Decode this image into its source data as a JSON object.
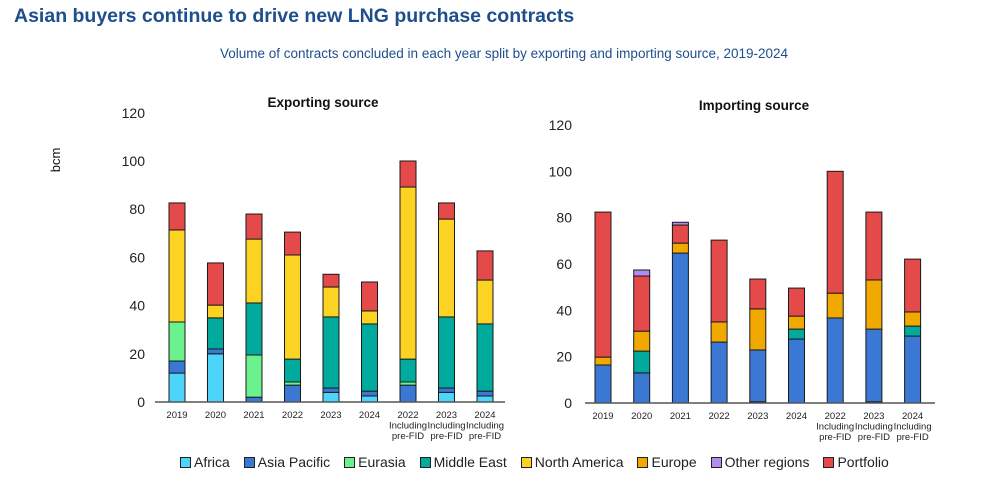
{
  "title": "Asian buyers continue to drive new LNG purchase contracts",
  "subtitle": "Volume of contracts concluded in each year split by exporting and importing source, 2019-2024",
  "colors": {
    "Africa": "#4dd4fb",
    "Asia Pacific": "#3a78d4",
    "Eurasia": "#6cf18f",
    "Middle East": "#00ab9e",
    "North America": "#fcd322",
    "Europe": "#f1a900",
    "Other regions": "#b38cef",
    "Portfolio": "#e44a4a"
  },
  "legend": [
    "Africa",
    "Asia Pacific",
    "Eurasia",
    "Middle East",
    "North America",
    "Europe",
    "Other regions",
    "Portfolio"
  ],
  "chart_data": [
    {
      "type": "bar",
      "stacked": true,
      "title": "Exporting source",
      "ylabel": "bcm",
      "xlabel": "",
      "ylim": [
        0,
        120
      ],
      "yticks": [
        0,
        20,
        40,
        60,
        80,
        100,
        120
      ],
      "categories": [
        "2019",
        "2020",
        "2021",
        "2022",
        "2023",
        "2024",
        "2022 Including pre-FID",
        "2023 Including pre-FID",
        "2024 Including pre-FID"
      ],
      "series": [
        {
          "name": "Africa",
          "values": [
            12,
            20,
            0,
            0,
            4,
            2.5,
            0,
            4,
            2.5
          ]
        },
        {
          "name": "Asia Pacific",
          "values": [
            5,
            2,
            2,
            7,
            1.8,
            2,
            7,
            1.8,
            2
          ]
        },
        {
          "name": "Eurasia",
          "values": [
            16.2,
            0,
            17.5,
            1.3,
            0,
            0,
            1.3,
            0,
            0
          ]
        },
        {
          "name": "Middle East",
          "values": [
            0,
            12.9,
            21.6,
            9.5,
            29.5,
            27.9,
            9.5,
            29.5,
            27.9
          ]
        },
        {
          "name": "North America",
          "values": [
            38.2,
            5.3,
            26.5,
            43.2,
            12.4,
            5.4,
            71.4,
            40.6,
            18.2
          ]
        },
        {
          "name": "Portfolio",
          "values": [
            11.2,
            17.5,
            10.4,
            9.5,
            5.3,
            12,
            10.8,
            6.7,
            12.1
          ]
        }
      ]
    },
    {
      "type": "bar",
      "stacked": true,
      "title": "Importing source",
      "ylabel": "",
      "xlabel": "",
      "ylim": [
        0,
        120
      ],
      "yticks": [
        0,
        20,
        40,
        60,
        80,
        100,
        120
      ],
      "categories": [
        "2019",
        "2020",
        "2021",
        "2022",
        "2023",
        "2024",
        "2022 Including pre-FID",
        "2023 Including pre-FID",
        "2024 Including pre-FID"
      ],
      "series": [
        {
          "name": "Middle East",
          "values": [
            0,
            0,
            0,
            0,
            0.5,
            0,
            0,
            0.5,
            0
          ]
        },
        {
          "name": "Asia Pacific",
          "values": [
            16.4,
            13,
            64.7,
            26.3,
            22.4,
            27.6,
            36.7,
            31.4,
            28.9
          ]
        },
        {
          "name": "Middle East ",
          "values": [
            0,
            9.4,
            0,
            0,
            0,
            4.3,
            0,
            0,
            4.3
          ]
        },
        {
          "name": "Europe",
          "values": [
            3.4,
            8.6,
            4.3,
            8.7,
            17.7,
            5.6,
            10.7,
            21.2,
            6.1
          ]
        },
        {
          "name": "Portfolio",
          "values": [
            62.6,
            23.8,
            7.8,
            35.3,
            12.9,
            12.1,
            52.6,
            29.3,
            22.8
          ]
        },
        {
          "name": "Other regions",
          "values": [
            0,
            2.6,
            1.2,
            0,
            0,
            0,
            0,
            0,
            0
          ]
        }
      ]
    }
  ]
}
